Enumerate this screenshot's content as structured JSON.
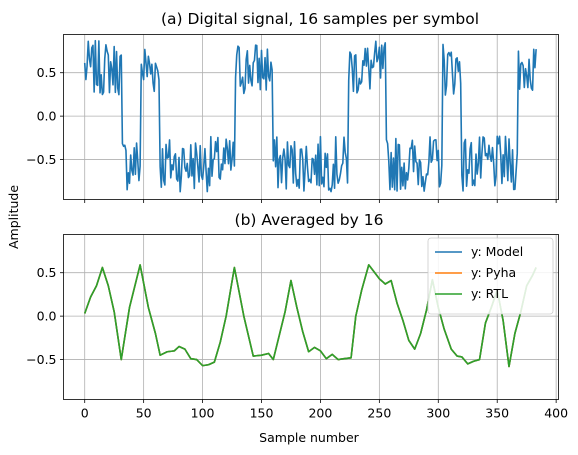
{
  "chart_data": [
    {
      "type": "line",
      "title": "(a) Digital signal, 16 samples per symbol",
      "xlabel": "",
      "ylabel": "Amplitude",
      "xlim": [
        -18,
        402
      ],
      "ylim": [
        -0.96,
        0.94
      ],
      "x_ticks": [
        0,
        50,
        100,
        150,
        200,
        250,
        300,
        350,
        400
      ],
      "y_ticks": [
        -0.5,
        0.0,
        0.5
      ],
      "y_tick_labels": [
        "−0.5",
        "0.0",
        "0.5"
      ],
      "grid": true,
      "symbol_levels": [
        1,
        1,
        -1,
        1,
        -1,
        -1,
        -1,
        -1,
        1,
        1,
        -1,
        -1,
        -1,
        -1,
        1,
        1,
        -1,
        -1,
        -1,
        1,
        -1,
        -1,
        -1,
        1
      ],
      "samples_per_symbol": 16,
      "noise_amplitude": 0.32,
      "series": [
        {
          "color": "#1f77b4"
        }
      ]
    },
    {
      "type": "line",
      "title": "(b) Averaged by 16",
      "xlabel": "Sample number",
      "ylabel": "Amplitude",
      "xlim": [
        -18,
        402
      ],
      "ylim": [
        -0.96,
        0.94
      ],
      "x_ticks": [
        0,
        50,
        100,
        150,
        200,
        250,
        300,
        350,
        400
      ],
      "x_tick_labels": [
        "0",
        "50",
        "100",
        "150",
        "200",
        "250",
        "300",
        "350",
        "400"
      ],
      "y_ticks": [
        -0.5,
        0.0,
        0.5
      ],
      "y_tick_labels": [
        "−0.5",
        "0.0",
        "0.5"
      ],
      "grid": true,
      "legend": "top-right",
      "x": [
        0,
        5,
        10,
        15,
        20,
        25,
        31,
        38,
        47,
        54,
        60,
        64,
        70,
        76,
        80,
        85,
        90,
        95,
        100,
        105,
        110,
        115,
        120,
        127,
        135,
        143,
        150,
        156,
        160,
        166,
        170,
        175,
        180,
        185,
        190,
        195,
        200,
        205,
        210,
        215,
        220,
        226,
        230,
        235,
        241,
        245,
        250,
        255,
        260,
        265,
        270,
        275,
        280,
        285,
        290,
        295,
        300,
        305,
        311,
        316,
        320,
        325,
        330,
        335,
        340,
        345,
        350,
        355,
        360,
        365,
        370,
        375,
        380,
        383
      ],
      "y": [
        0.03,
        0.22,
        0.35,
        0.56,
        0.35,
        0.05,
        -0.5,
        0.1,
        0.59,
        0.1,
        -0.2,
        -0.45,
        -0.41,
        -0.4,
        -0.35,
        -0.38,
        -0.49,
        -0.5,
        -0.57,
        -0.56,
        -0.53,
        -0.3,
        0.0,
        0.56,
        0.0,
        -0.46,
        -0.45,
        -0.43,
        -0.5,
        -0.17,
        0.05,
        0.41,
        0.1,
        -0.18,
        -0.41,
        -0.36,
        -0.4,
        -0.49,
        -0.44,
        -0.5,
        -0.49,
        -0.48,
        0.0,
        0.3,
        0.59,
        0.52,
        0.43,
        0.37,
        0.41,
        0.15,
        -0.05,
        -0.28,
        -0.38,
        -0.2,
        0.07,
        0.42,
        0.1,
        -0.15,
        -0.38,
        -0.46,
        -0.47,
        -0.55,
        -0.52,
        -0.5,
        -0.08,
        0.1,
        0.3,
        -0.05,
        -0.58,
        -0.2,
        0.05,
        0.35,
        0.47,
        0.56
      ],
      "series": [
        {
          "name": "y: Model",
          "color": "#1f77b4"
        },
        {
          "name": "y: Pyha",
          "color": "#ff7f0e"
        },
        {
          "name": "y: RTL",
          "color": "#2ca02c"
        }
      ]
    }
  ]
}
